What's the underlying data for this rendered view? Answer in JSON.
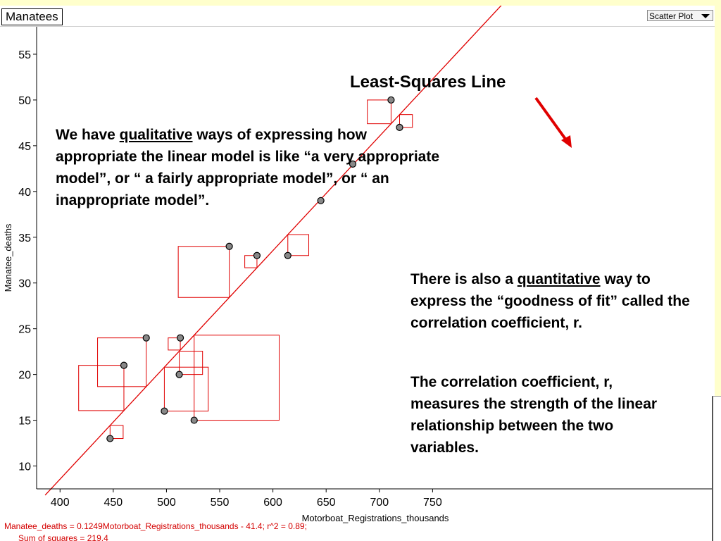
{
  "window": {
    "title": "Manatees",
    "plot_type": "Scatter Plot",
    "dropdown_icon": "triangle-down-icon"
  },
  "chart_data": {
    "type": "scatter",
    "xlabel": "Motorboat_Registrations_thousands",
    "ylabel": "Manatee_deaths",
    "xlim": [
      378,
      1015
    ],
    "ylim": [
      7.5,
      58
    ],
    "xticks": [
      400,
      450,
      500,
      550,
      600,
      650,
      700,
      750
    ],
    "yticks": [
      10,
      15,
      20,
      25,
      30,
      35,
      40,
      45,
      50,
      55
    ],
    "points": [
      {
        "x": 447,
        "y": 13
      },
      {
        "x": 460,
        "y": 21
      },
      {
        "x": 481,
        "y": 24
      },
      {
        "x": 498,
        "y": 16
      },
      {
        "x": 512,
        "y": 20
      },
      {
        "x": 513,
        "y": 24
      },
      {
        "x": 526,
        "y": 15
      },
      {
        "x": 559,
        "y": 34
      },
      {
        "x": 585,
        "y": 33
      },
      {
        "x": 614,
        "y": 33
      },
      {
        "x": 645,
        "y": 39
      },
      {
        "x": 675,
        "y": 43
      },
      {
        "x": 711,
        "y": 50
      },
      {
        "x": 719,
        "y": 47
      }
    ],
    "fit_line": {
      "slope": 0.1249,
      "intercept": -41.4
    },
    "show_squares": true,
    "colors": {
      "line": "#e00000",
      "squares": "#e00000",
      "points": "#888888",
      "point_edge": "#000000"
    }
  },
  "footer": {
    "formula": "Manatee_deaths = 0.1249Motorboat_Registrations_thousands - 41.4; r^2 = 0.89;",
    "sum_of_squares": "Sum of squares = 219.4"
  },
  "annotations": {
    "lsl_label": "Least-Squares Line",
    "qualitative": {
      "pre": "We have ",
      "keyword": "qualitative",
      "post": " ways of expressing how appropriate the linear model is like “a very appropriate model”, or “ a fairly appropriate model”, or “ an inappropriate model”."
    },
    "quantitative": {
      "pre": "There is also a ",
      "keyword": "quantitative",
      "post": " way to express the “goodness of fit” called the correlation coefficient, r."
    },
    "correlation": "The correlation coefficient, r, measures the strength of the linear relationship between the two variables."
  }
}
